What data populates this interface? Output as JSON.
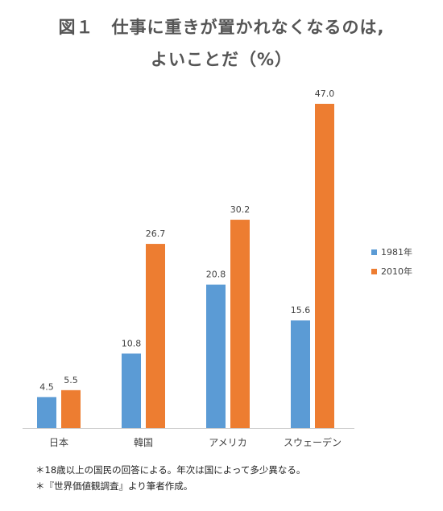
{
  "chart_data": {
    "type": "bar",
    "title_line1": "図１　仕事に重きが置かれなくなるのは,",
    "title_line2": "よいことだ（%）",
    "categories": [
      "日本",
      "韓国",
      "アメリカ",
      "スウェーデン"
    ],
    "series": [
      {
        "name": "1981年",
        "color": "#5b9bd5",
        "values": [
          4.5,
          10.8,
          20.8,
          15.6
        ]
      },
      {
        "name": "2010年",
        "color": "#ed7d31",
        "values": [
          5.5,
          26.7,
          30.2,
          47.0
        ]
      }
    ],
    "ylim": [
      0,
      47.0
    ],
    "grid": false,
    "legend_position": "right",
    "data_labels": true
  },
  "notes": [
    "＊18歳以上の国民の回答による。年次は国によって多少異なる。",
    "＊『世界価値観調査』より筆者作成。"
  ]
}
